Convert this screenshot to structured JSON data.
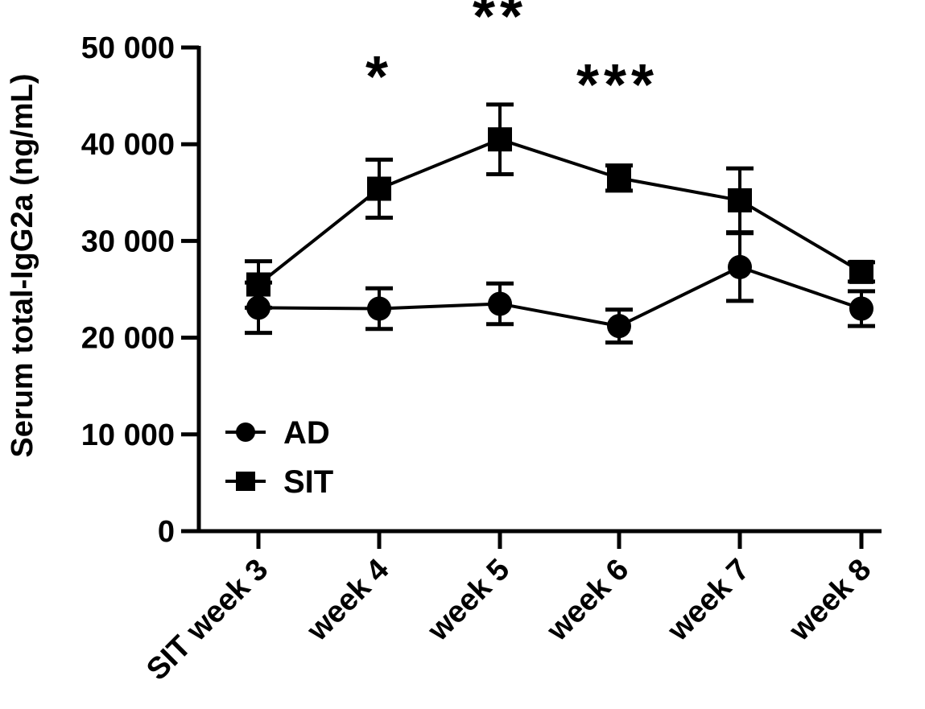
{
  "chart_data": {
    "type": "line",
    "title": "",
    "ylabel": "Serum total-IgG2a (ng/mL)",
    "xlabel": "",
    "ylim": [
      0,
      50000
    ],
    "y_ticks": [
      0,
      10000,
      20000,
      30000,
      40000,
      50000
    ],
    "y_tick_labels": [
      "0",
      "10 000",
      "20 000",
      "30 000",
      "40 000",
      "50 000"
    ],
    "categories": [
      "SIT week 3",
      "week 4",
      "week 5",
      "week 6",
      "week 7",
      "week 8"
    ],
    "series": [
      {
        "name": "AD",
        "marker": "circle",
        "values": [
          23100,
          23000,
          23500,
          21200,
          27300,
          23000
        ],
        "error": [
          2600,
          2100,
          2100,
          1700,
          3500,
          1800
        ]
      },
      {
        "name": "SIT",
        "marker": "square",
        "values": [
          25500,
          35400,
          40500,
          36500,
          34200,
          26800
        ],
        "error": [
          2400,
          3000,
          3600,
          1300,
          3300,
          1000
        ]
      }
    ],
    "annotations": [
      {
        "category_index": 1,
        "text": "*"
      },
      {
        "category_index": 2,
        "text": "**"
      },
      {
        "category_index": 3,
        "text": "***"
      }
    ],
    "legend": {
      "position": "bottom-left"
    },
    "grid": false,
    "color": "#000000"
  }
}
